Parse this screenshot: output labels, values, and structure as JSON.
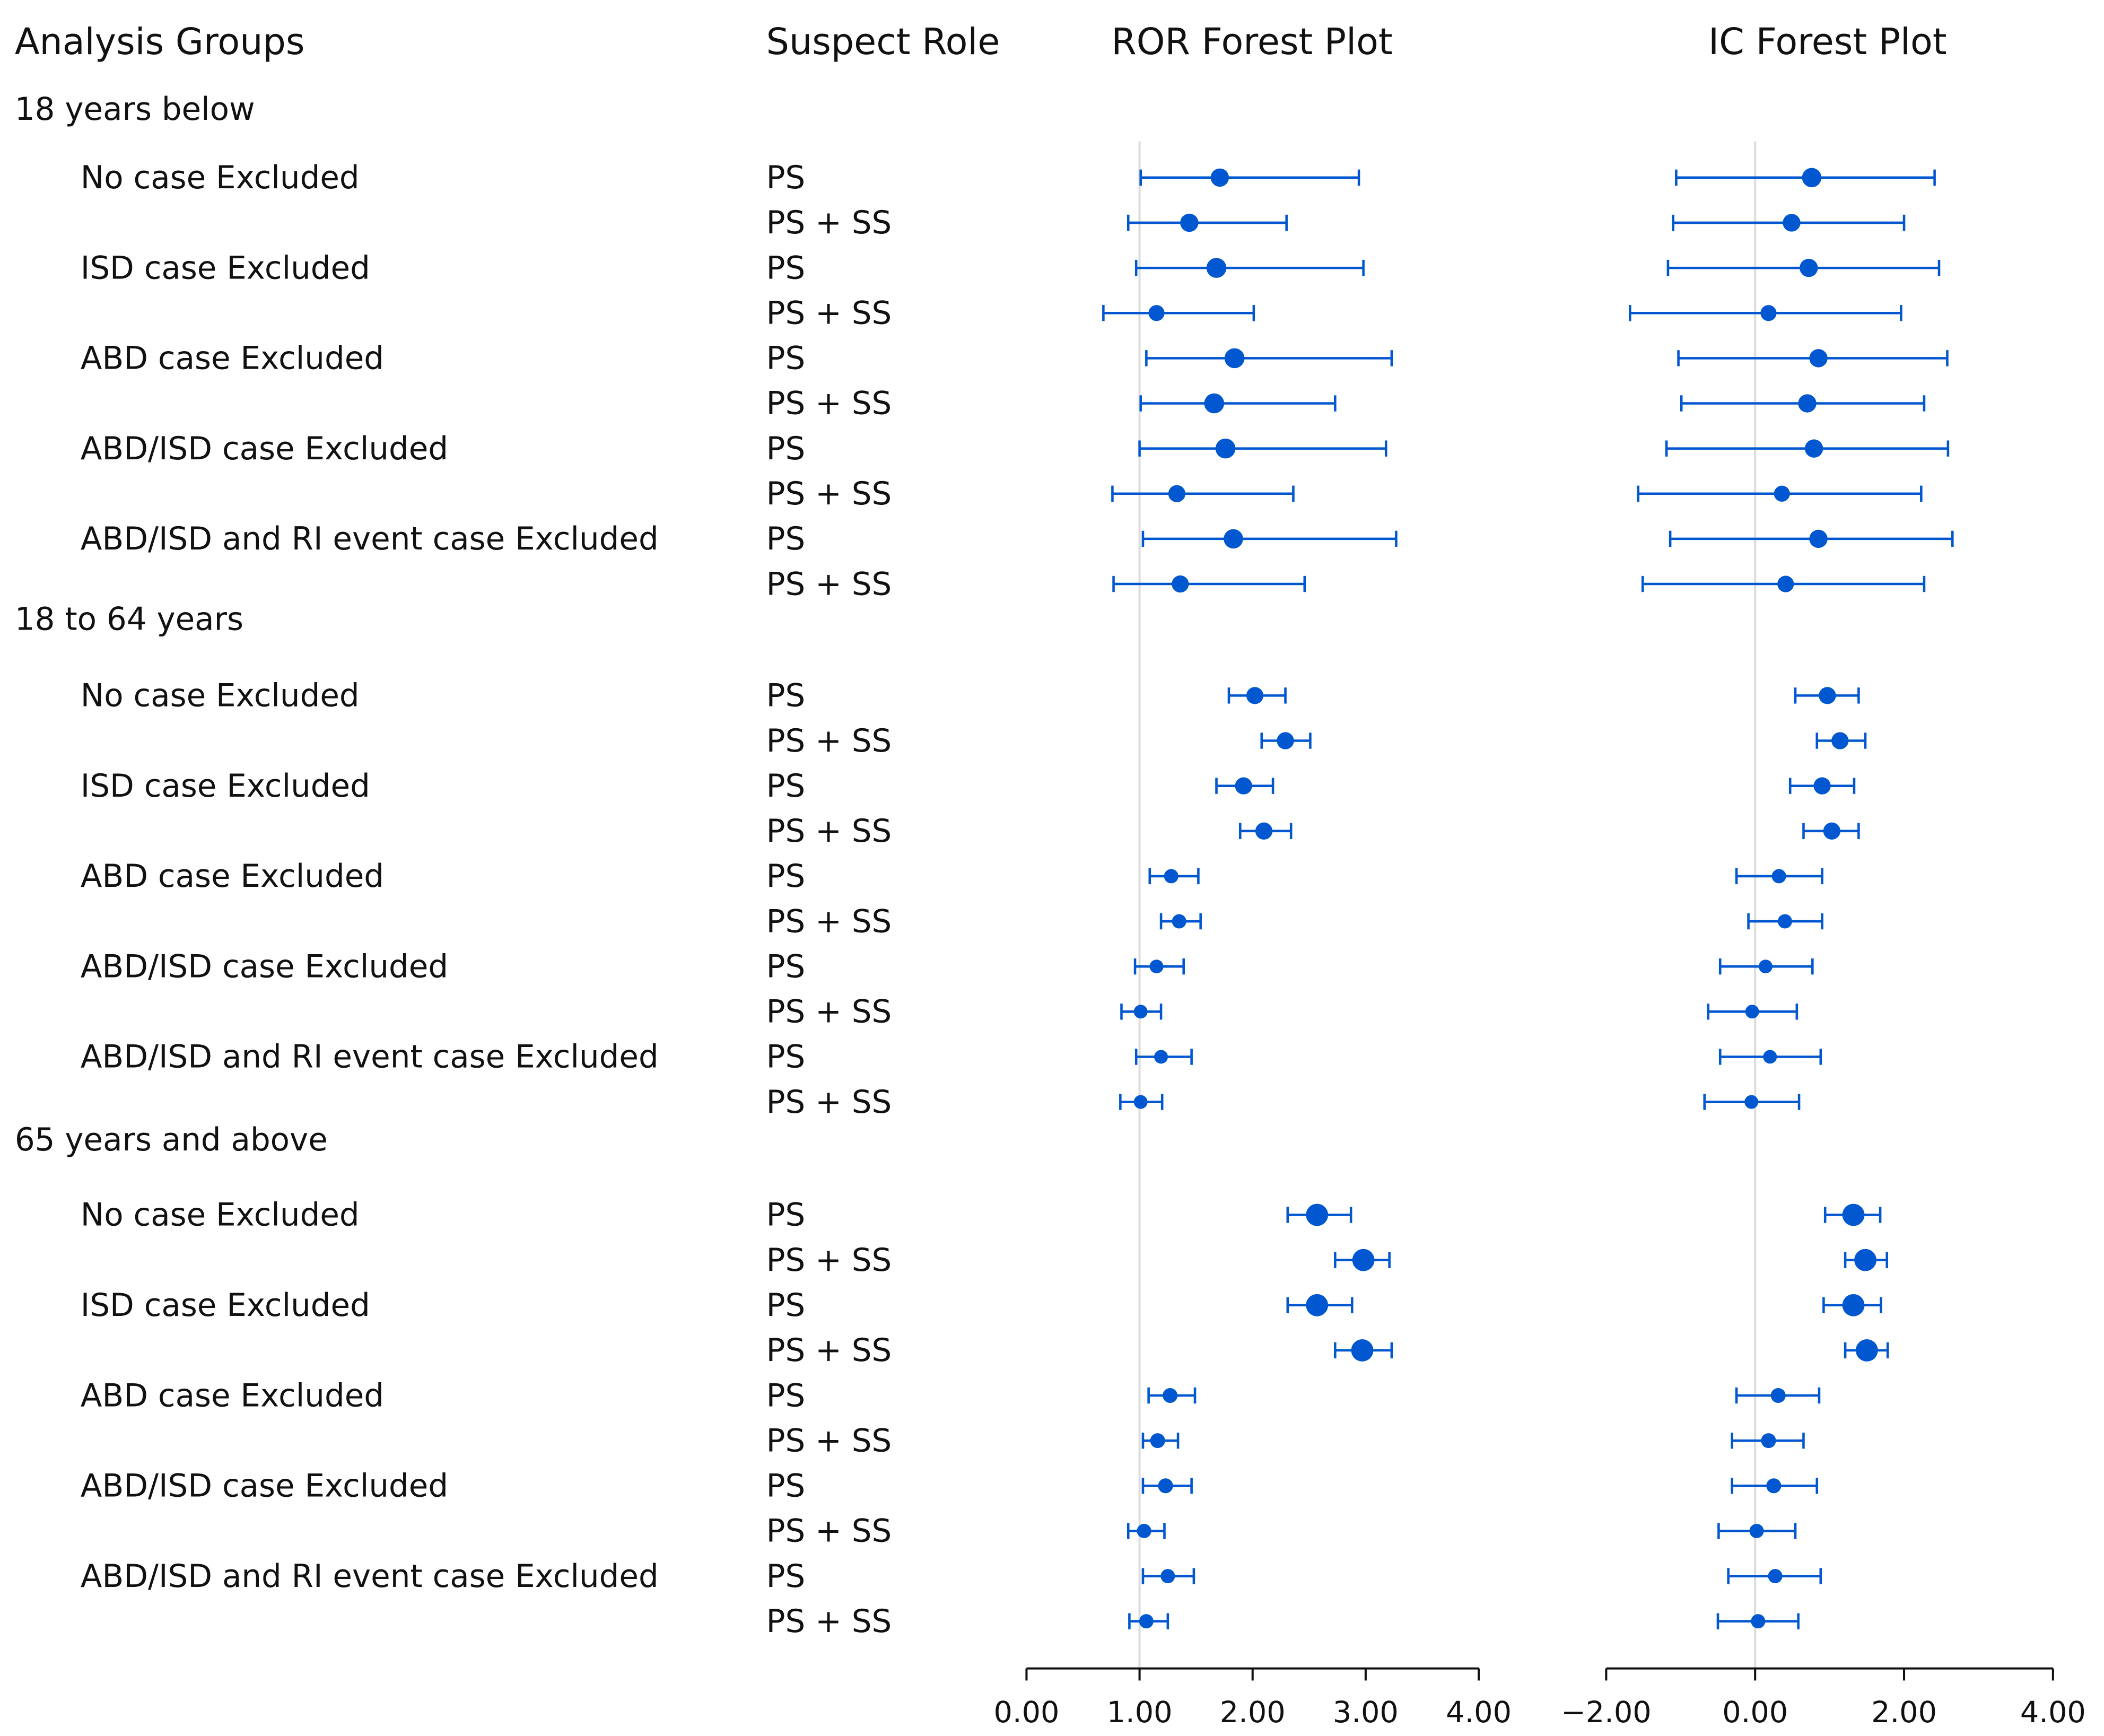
{
  "headers": {
    "groups": "Analysis Groups",
    "role": "Suspect Role",
    "ror": "ROR Forest Plot",
    "ic": "IC Forest Plot"
  },
  "colors": {
    "marker": "#0057d0",
    "reference_line": "#dcdcdc",
    "axis": "#111111"
  },
  "chart_data": [
    {
      "type": "forest",
      "title": "ROR Forest Plot",
      "xlim": [
        0,
        4
      ],
      "ticks": [
        "0.00",
        "1.00",
        "2.00",
        "3.00",
        "4.00"
      ],
      "tick_values": [
        0,
        1,
        2,
        3,
        4
      ],
      "reference_value": 1,
      "groups": [
        {
          "label": "18 years below",
          "rows": [
            {
              "analysis": "No case Excluded",
              "role": "PS",
              "est": 1.71,
              "lo": 1.01,
              "hi": 2.94,
              "weight": 2
            },
            {
              "analysis": "",
              "role": "PS + SS",
              "est": 1.44,
              "lo": 0.9,
              "hi": 2.3,
              "weight": 2
            },
            {
              "analysis": "ISD case Excluded",
              "role": "PS",
              "est": 1.68,
              "lo": 0.97,
              "hi": 2.98,
              "weight": 2.3
            },
            {
              "analysis": "",
              "role": "PS + SS",
              "est": 1.15,
              "lo": 0.68,
              "hi": 2.01,
              "weight": 1.6
            },
            {
              "analysis": "ABD case Excluded",
              "role": "PS",
              "est": 1.84,
              "lo": 1.06,
              "hi": 3.23,
              "weight": 2.3
            },
            {
              "analysis": "",
              "role": "PS + SS",
              "est": 1.66,
              "lo": 1.01,
              "hi": 2.73,
              "weight": 2.3
            },
            {
              "analysis": "ABD/ISD case Excluded",
              "role": "PS",
              "est": 1.76,
              "lo": 1.0,
              "hi": 3.18,
              "weight": 2.3
            },
            {
              "analysis": "",
              "role": "PS + SS",
              "est": 1.33,
              "lo": 0.76,
              "hi": 2.36,
              "weight": 1.8
            },
            {
              "analysis": "ABD/ISD and RI event case Excluded",
              "role": "PS",
              "est": 1.83,
              "lo": 1.03,
              "hi": 3.27,
              "weight": 2.2
            },
            {
              "analysis": "",
              "role": "PS + SS",
              "est": 1.36,
              "lo": 0.77,
              "hi": 2.46,
              "weight": 1.8
            }
          ]
        },
        {
          "label": "18 to 64 years",
          "rows": [
            {
              "analysis": "No case Excluded",
              "role": "PS",
              "est": 2.02,
              "lo": 1.79,
              "hi": 2.29,
              "weight": 1.8
            },
            {
              "analysis": "",
              "role": "PS + SS",
              "est": 2.29,
              "lo": 2.08,
              "hi": 2.51,
              "weight": 1.8
            },
            {
              "analysis": "ISD case Excluded",
              "role": "PS",
              "est": 1.92,
              "lo": 1.68,
              "hi": 2.18,
              "weight": 1.8
            },
            {
              "analysis": "",
              "role": "PS + SS",
              "est": 2.1,
              "lo": 1.89,
              "hi": 2.34,
              "weight": 1.8
            },
            {
              "analysis": "ABD case Excluded",
              "role": "PS",
              "est": 1.28,
              "lo": 1.09,
              "hi": 1.52,
              "weight": 1.3
            },
            {
              "analysis": "",
              "role": "PS + SS",
              "est": 1.35,
              "lo": 1.19,
              "hi": 1.54,
              "weight": 1.3
            },
            {
              "analysis": "ABD/ISD case Excluded",
              "role": "PS",
              "est": 1.15,
              "lo": 0.96,
              "hi": 1.39,
              "weight": 1.2
            },
            {
              "analysis": "",
              "role": "PS + SS",
              "est": 1.01,
              "lo": 0.84,
              "hi": 1.19,
              "weight": 1.2
            },
            {
              "analysis": "ABD/ISD and RI event case Excluded",
              "role": "PS",
              "est": 1.19,
              "lo": 0.97,
              "hi": 1.46,
              "weight": 1.2
            },
            {
              "analysis": "",
              "role": "PS + SS",
              "est": 1.01,
              "lo": 0.83,
              "hi": 1.2,
              "weight": 1.2
            }
          ]
        },
        {
          "label": "65 years and above",
          "rows": [
            {
              "analysis": "No case Excluded",
              "role": "PS",
              "est": 2.57,
              "lo": 2.31,
              "hi": 2.87,
              "weight": 2.7
            },
            {
              "analysis": "",
              "role": "PS + SS",
              "est": 2.98,
              "lo": 2.73,
              "hi": 3.21,
              "weight": 2.7
            },
            {
              "analysis": "ISD case Excluded",
              "role": "PS",
              "est": 2.57,
              "lo": 2.31,
              "hi": 2.88,
              "weight": 2.7
            },
            {
              "analysis": "",
              "role": "PS + SS",
              "est": 2.97,
              "lo": 2.73,
              "hi": 3.23,
              "weight": 2.7
            },
            {
              "analysis": "ABD case Excluded",
              "role": "PS",
              "est": 1.27,
              "lo": 1.08,
              "hi": 1.49,
              "weight": 1.4
            },
            {
              "analysis": "",
              "role": "PS + SS",
              "est": 1.16,
              "lo": 1.03,
              "hi": 1.34,
              "weight": 1.4
            },
            {
              "analysis": "ABD/ISD case Excluded",
              "role": "PS",
              "est": 1.23,
              "lo": 1.03,
              "hi": 1.46,
              "weight": 1.4
            },
            {
              "analysis": "",
              "role": "PS + SS",
              "est": 1.04,
              "lo": 0.9,
              "hi": 1.22,
              "weight": 1.3
            },
            {
              "analysis": "ABD/ISD and RI event case Excluded",
              "role": "PS",
              "est": 1.25,
              "lo": 1.03,
              "hi": 1.48,
              "weight": 1.3
            },
            {
              "analysis": "",
              "role": "PS + SS",
              "est": 1.06,
              "lo": 0.91,
              "hi": 1.25,
              "weight": 1.3
            }
          ]
        }
      ]
    },
    {
      "type": "forest",
      "title": "IC Forest Plot",
      "xlim": [
        -2,
        4
      ],
      "ticks": [
        "−2.00",
        "0.00",
        "2.00",
        "4.00"
      ],
      "tick_values": [
        -2,
        0,
        2,
        4
      ],
      "reference_value": 0,
      "groups": [
        {
          "label": "18 years below",
          "rows": [
            {
              "est": 0.76,
              "lo": -1.06,
              "hi": 2.41,
              "weight": 2.2
            },
            {
              "est": 0.49,
              "lo": -1.1,
              "hi": 2.0,
              "weight": 1.9
            },
            {
              "est": 0.72,
              "lo": -1.17,
              "hi": 2.47,
              "weight": 2.0
            },
            {
              "est": 0.18,
              "lo": -1.68,
              "hi": 1.96,
              "weight": 1.6
            },
            {
              "est": 0.85,
              "lo": -1.03,
              "hi": 2.58,
              "weight": 2.0
            },
            {
              "est": 0.7,
              "lo": -0.99,
              "hi": 2.27,
              "weight": 2.0
            },
            {
              "est": 0.79,
              "lo": -1.19,
              "hi": 2.59,
              "weight": 2.0
            },
            {
              "est": 0.36,
              "lo": -1.57,
              "hi": 2.23,
              "weight": 1.6
            },
            {
              "est": 0.85,
              "lo": -1.14,
              "hi": 2.65,
              "weight": 2.0
            },
            {
              "est": 0.41,
              "lo": -1.51,
              "hi": 2.27,
              "weight": 1.7
            }
          ]
        },
        {
          "label": "18 to 64 years",
          "rows": [
            {
              "est": 0.97,
              "lo": 0.54,
              "hi": 1.39,
              "weight": 1.8
            },
            {
              "est": 1.14,
              "lo": 0.83,
              "hi": 1.48,
              "weight": 1.8
            },
            {
              "est": 0.9,
              "lo": 0.47,
              "hi": 1.33,
              "weight": 1.8
            },
            {
              "est": 1.03,
              "lo": 0.65,
              "hi": 1.39,
              "weight": 1.8
            },
            {
              "est": 0.32,
              "lo": -0.25,
              "hi": 0.9,
              "weight": 1.3
            },
            {
              "est": 0.4,
              "lo": -0.09,
              "hi": 0.9,
              "weight": 1.3
            },
            {
              "est": 0.14,
              "lo": -0.47,
              "hi": 0.77,
              "weight": 1.2
            },
            {
              "est": -0.04,
              "lo": -0.63,
              "hi": 0.56,
              "weight": 1.2
            },
            {
              "est": 0.2,
              "lo": -0.47,
              "hi": 0.88,
              "weight": 1.2
            },
            {
              "est": -0.05,
              "lo": -0.68,
              "hi": 0.59,
              "weight": 1.2
            }
          ]
        },
        {
          "label": "65 years and above",
          "rows": [
            {
              "est": 1.32,
              "lo": 0.94,
              "hi": 1.68,
              "weight": 2.7
            },
            {
              "est": 1.48,
              "lo": 1.21,
              "hi": 1.77,
              "weight": 2.7
            },
            {
              "est": 1.32,
              "lo": 0.92,
              "hi": 1.69,
              "weight": 2.7
            },
            {
              "est": 1.5,
              "lo": 1.21,
              "hi": 1.78,
              "weight": 2.7
            },
            {
              "est": 0.31,
              "lo": -0.25,
              "hi": 0.86,
              "weight": 1.4
            },
            {
              "est": 0.18,
              "lo": -0.31,
              "hi": 0.65,
              "weight": 1.4
            },
            {
              "est": 0.25,
              "lo": -0.31,
              "hi": 0.83,
              "weight": 1.4
            },
            {
              "est": 0.02,
              "lo": -0.49,
              "hi": 0.54,
              "weight": 1.3
            },
            {
              "est": 0.27,
              "lo": -0.36,
              "hi": 0.88,
              "weight": 1.3
            },
            {
              "est": 0.04,
              "lo": -0.5,
              "hi": 0.58,
              "weight": 1.3
            }
          ]
        }
      ]
    }
  ]
}
